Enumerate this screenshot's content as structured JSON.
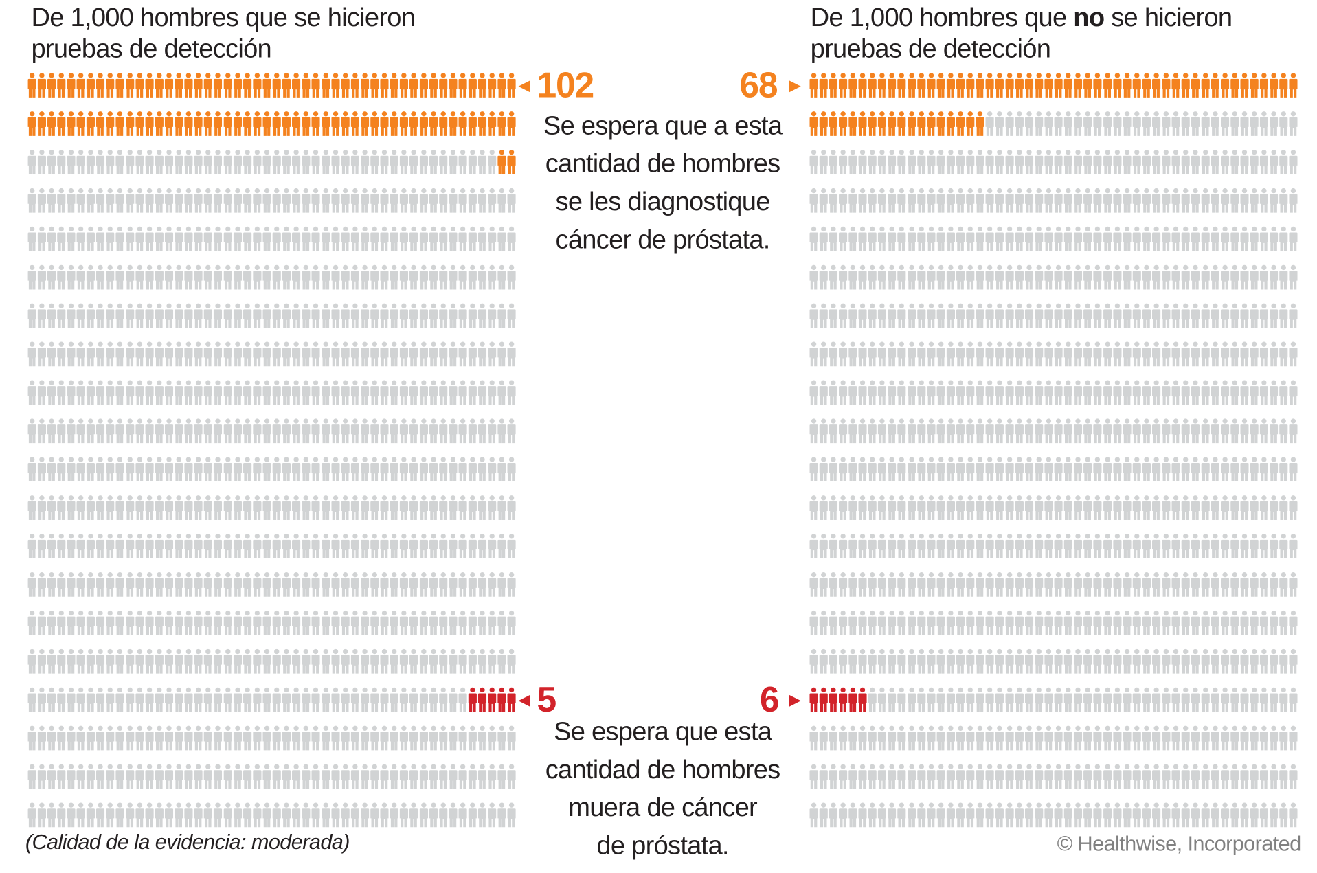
{
  "colors": {
    "diagnosed": "#f4821f",
    "died": "#d2232a",
    "other": "#d1d3d4",
    "text": "#231f20",
    "copyright": "#808080"
  },
  "left": {
    "title_line1": "De 1,000 hombres que se hicieron",
    "title_line2": "pruebas de detección"
  },
  "right": {
    "title_pre": "De 1,000 hombres que ",
    "title_bold": "no",
    "title_post": " se hicieron",
    "title_line2": "pruebas de detección"
  },
  "middle": {
    "diagnosed_text": [
      "Se espera que a esta",
      "cantidad de hombres",
      "se les diagnostique",
      "cáncer de próstata."
    ],
    "died_text": [
      "Se espera que esta",
      "cantidad de hombres",
      "muera de cáncer",
      "de próstata."
    ]
  },
  "footnote": "(Calidad de la evidencia: moderada)",
  "copyright": "© Healthwise, Incorporated",
  "chart_data": {
    "type": "pictogram",
    "total_per_group": 1000,
    "icon": "person-icon",
    "groups": [
      {
        "name": "De 1,000 hombres que se hicieron pruebas de detección",
        "diagnosed": 102,
        "died": 5,
        "diagnosed_label": "102",
        "died_label": "5"
      },
      {
        "name": "De 1,000 hombres que no se hicieron pruebas de detección",
        "diagnosed": 68,
        "died": 6,
        "diagnosed_label": "68",
        "died_label": "6"
      }
    ]
  }
}
